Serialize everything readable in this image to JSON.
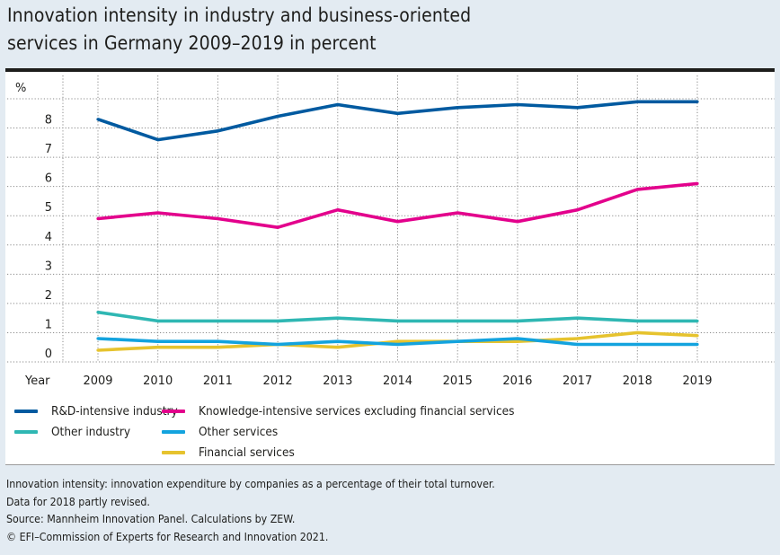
{
  "title_lines": [
    "Innovation intensity in industry and business-oriented",
    "services in Germany 2009–2019 in percent"
  ],
  "chart_data": {
    "type": "line",
    "title": "Innovation intensity in industry and business-oriented services in Germany 2009–2019 in percent",
    "xlabel": "Year",
    "ylabel": "%",
    "x": [
      2009,
      2010,
      2011,
      2012,
      2013,
      2014,
      2015,
      2016,
      2017,
      2018,
      2019
    ],
    "x_tick_labels": [
      "2009",
      "2010",
      "2011",
      "2012",
      "2013",
      "2014",
      "2015",
      "2016",
      "2017",
      "2018",
      "2019"
    ],
    "y_tick_labels": [
      "0",
      "1",
      "2",
      "3",
      "4",
      "5",
      "6",
      "7",
      "8"
    ],
    "ylim": [
      0,
      9
    ],
    "grid": true,
    "legend_position": "bottom",
    "series": [
      {
        "name": "R&D-intensive industry",
        "color": "#005aa0",
        "values": [
          8.3,
          7.6,
          7.9,
          8.4,
          8.8,
          8.5,
          8.7,
          8.8,
          8.7,
          8.9,
          8.9
        ]
      },
      {
        "name": "Knowledge-intensive services excluding financial services",
        "color": "#e3008c",
        "values": [
          4.9,
          5.1,
          4.9,
          4.6,
          5.2,
          4.8,
          5.1,
          4.8,
          5.2,
          5.9,
          6.1
        ]
      },
      {
        "name": "Other industry",
        "color": "#2fb7b3",
        "values": [
          1.7,
          1.4,
          1.4,
          1.4,
          1.5,
          1.4,
          1.4,
          1.4,
          1.5,
          1.4,
          1.4
        ]
      },
      {
        "name": "Other services",
        "color": "#13a3de",
        "values": [
          0.8,
          0.7,
          0.7,
          0.6,
          0.7,
          0.6,
          0.7,
          0.8,
          0.6,
          0.6,
          0.6
        ]
      },
      {
        "name": "Financial services",
        "color": "#e6c32e",
        "values": [
          0.4,
          0.5,
          0.5,
          0.6,
          0.5,
          0.7,
          0.7,
          0.7,
          0.8,
          1.0,
          0.9
        ]
      }
    ]
  },
  "legend": [
    {
      "label": "R&D-intensive industry",
      "color": "#005aa0"
    },
    {
      "label": "Knowledge-intensive services excluding financial services",
      "color": "#e3008c"
    },
    {
      "label": "Other industry",
      "color": "#2fb7b3"
    },
    {
      "label": "Other services",
      "color": "#13a3de"
    },
    {
      "label": "Financial services",
      "color": "#e6c32e"
    }
  ],
  "notes": [
    "Innovation intensity: innovation expenditure by companies as a percentage of their total turnover.",
    "Data for 2018 partly revised.",
    "Source: Mannheim Innovation Panel. Calculations by ZEW.",
    "© EFI–Commission of Experts for Research and Innovation 2021."
  ]
}
